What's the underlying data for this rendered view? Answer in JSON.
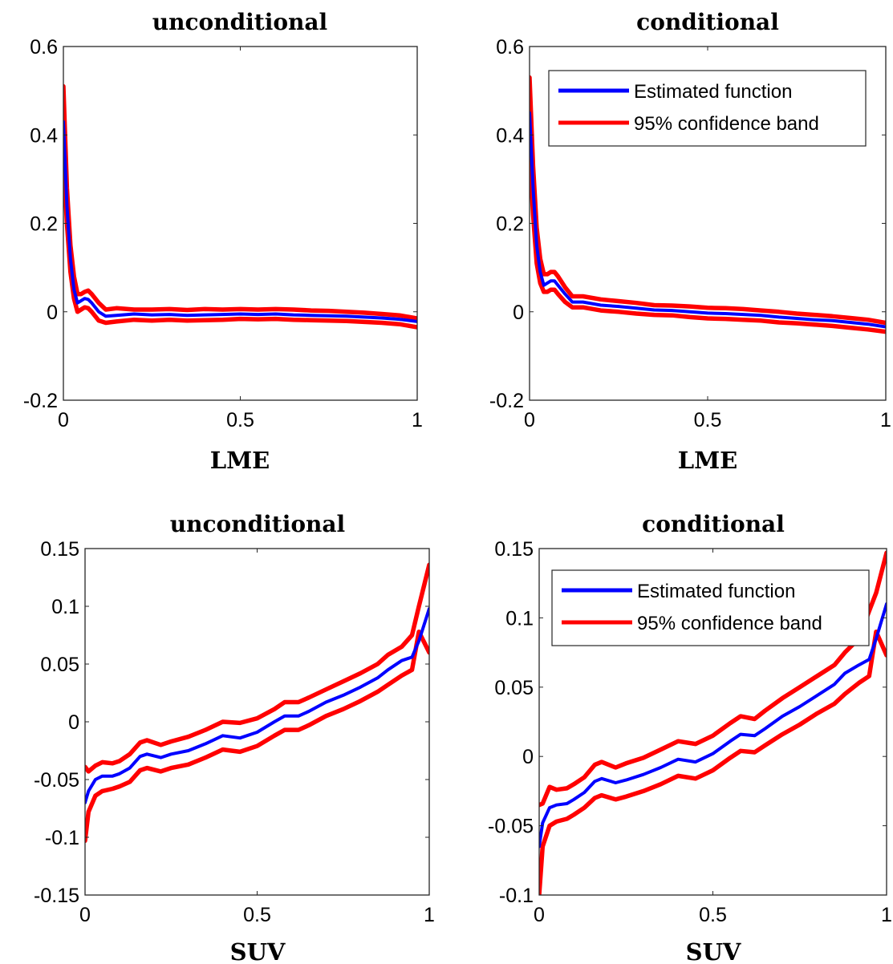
{
  "chart_data": [
    {
      "type": "line",
      "title": "unconditional",
      "xlabel": "LME",
      "ylabel": "",
      "xlim": [
        0,
        1
      ],
      "ylim": [
        -0.2,
        0.6
      ],
      "xticks": [
        0,
        0.5,
        1
      ],
      "xtick_labels": [
        "0",
        "0.5",
        "1"
      ],
      "yticks": [
        -0.2,
        0,
        0.2,
        0.4,
        0.6
      ],
      "ytick_labels": [
        "-0.2",
        "0",
        "0.2",
        "0.4",
        "0.6"
      ],
      "legend": null,
      "series": [
        {
          "color": "#0000ff",
          "x": [
            0,
            0.01,
            0.02,
            0.03,
            0.04,
            0.05,
            0.06,
            0.07,
            0.08,
            0.1,
            0.12,
            0.15,
            0.2,
            0.25,
            0.3,
            0.35,
            0.4,
            0.45,
            0.5,
            0.55,
            0.6,
            0.65,
            0.7,
            0.75,
            0.8,
            0.85,
            0.9,
            0.95,
            1.0
          ],
          "y": [
            0.43,
            0.24,
            0.12,
            0.05,
            0.02,
            0.025,
            0.03,
            0.028,
            0.02,
            0.0,
            -0.01,
            -0.008,
            -0.005,
            -0.007,
            -0.006,
            -0.008,
            -0.007,
            -0.006,
            -0.005,
            -0.006,
            -0.005,
            -0.007,
            -0.008,
            -0.009,
            -0.01,
            -0.012,
            -0.014,
            -0.017,
            -0.022
          ]
        },
        {
          "color": "#ff0000",
          "x": [
            0,
            0.01,
            0.02,
            0.03,
            0.04,
            0.05,
            0.06,
            0.07,
            0.08,
            0.1,
            0.12,
            0.15,
            0.2,
            0.25,
            0.3,
            0.35,
            0.4,
            0.45,
            0.5,
            0.55,
            0.6,
            0.65,
            0.7,
            0.75,
            0.8,
            0.85,
            0.9,
            0.95,
            1.0
          ],
          "y": [
            0.51,
            0.28,
            0.15,
            0.08,
            0.04,
            0.04,
            0.045,
            0.048,
            0.04,
            0.02,
            0.005,
            0.008,
            0.005,
            0.005,
            0.006,
            0.004,
            0.006,
            0.005,
            0.006,
            0.005,
            0.006,
            0.005,
            0.003,
            0.002,
            0.0,
            -0.002,
            -0.005,
            -0.008,
            -0.015
          ]
        },
        {
          "color": "#ff0000",
          "x": [
            0,
            0.01,
            0.02,
            0.03,
            0.04,
            0.05,
            0.06,
            0.07,
            0.08,
            0.1,
            0.12,
            0.15,
            0.2,
            0.25,
            0.3,
            0.35,
            0.4,
            0.45,
            0.5,
            0.55,
            0.6,
            0.65,
            0.7,
            0.75,
            0.8,
            0.85,
            0.9,
            0.95,
            1.0
          ],
          "y": [
            0.35,
            0.2,
            0.09,
            0.03,
            0.0,
            0.005,
            0.01,
            0.008,
            0.0,
            -0.02,
            -0.025,
            -0.022,
            -0.018,
            -0.02,
            -0.018,
            -0.02,
            -0.019,
            -0.018,
            -0.016,
            -0.017,
            -0.016,
            -0.018,
            -0.019,
            -0.02,
            -0.021,
            -0.023,
            -0.025,
            -0.028,
            -0.035
          ]
        }
      ]
    },
    {
      "type": "line",
      "title": "conditional",
      "xlabel": "LME",
      "ylabel": "",
      "xlim": [
        0,
        1
      ],
      "ylim": [
        -0.2,
        0.6
      ],
      "xticks": [
        0,
        0.5,
        1
      ],
      "xtick_labels": [
        "0",
        "0.5",
        "1"
      ],
      "yticks": [
        -0.2,
        0,
        0.2,
        0.4,
        0.6
      ],
      "ytick_labels": [
        "-0.2",
        "0",
        "0.2",
        "0.4",
        "0.6"
      ],
      "legend": {
        "position": "top-right",
        "entries": [
          {
            "label": "Estimated function",
            "color": "#0000ff"
          },
          {
            "label": "95% confidence band",
            "color": "#ff0000"
          }
        ]
      },
      "series": [
        {
          "color": "#0000ff",
          "x": [
            0,
            0.01,
            0.02,
            0.03,
            0.04,
            0.05,
            0.06,
            0.07,
            0.08,
            0.1,
            0.12,
            0.15,
            0.2,
            0.25,
            0.3,
            0.35,
            0.4,
            0.45,
            0.5,
            0.55,
            0.6,
            0.65,
            0.7,
            0.75,
            0.8,
            0.85,
            0.9,
            0.95,
            1.0
          ],
          "y": [
            0.45,
            0.28,
            0.15,
            0.09,
            0.06,
            0.065,
            0.07,
            0.07,
            0.06,
            0.04,
            0.022,
            0.022,
            0.015,
            0.012,
            0.008,
            0.004,
            0.003,
            0.0,
            -0.003,
            -0.004,
            -0.006,
            -0.008,
            -0.012,
            -0.015,
            -0.018,
            -0.02,
            -0.024,
            -0.028,
            -0.034
          ]
        },
        {
          "color": "#ff0000",
          "x": [
            0,
            0.01,
            0.02,
            0.03,
            0.04,
            0.05,
            0.06,
            0.07,
            0.08,
            0.1,
            0.12,
            0.15,
            0.2,
            0.25,
            0.3,
            0.35,
            0.4,
            0.45,
            0.5,
            0.55,
            0.6,
            0.65,
            0.7,
            0.75,
            0.8,
            0.85,
            0.9,
            0.95,
            1.0
          ],
          "y": [
            0.53,
            0.33,
            0.19,
            0.12,
            0.085,
            0.085,
            0.09,
            0.09,
            0.08,
            0.055,
            0.035,
            0.035,
            0.028,
            0.024,
            0.02,
            0.015,
            0.014,
            0.012,
            0.009,
            0.008,
            0.006,
            0.003,
            0.0,
            -0.004,
            -0.007,
            -0.01,
            -0.014,
            -0.018,
            -0.025
          ]
        },
        {
          "color": "#ff0000",
          "x": [
            0,
            0.01,
            0.02,
            0.03,
            0.04,
            0.05,
            0.06,
            0.07,
            0.08,
            0.1,
            0.12,
            0.15,
            0.2,
            0.25,
            0.3,
            0.35,
            0.4,
            0.45,
            0.5,
            0.55,
            0.6,
            0.65,
            0.7,
            0.75,
            0.8,
            0.85,
            0.9,
            0.95,
            1.0
          ],
          "y": [
            0.37,
            0.22,
            0.11,
            0.065,
            0.045,
            0.045,
            0.05,
            0.05,
            0.04,
            0.022,
            0.01,
            0.01,
            0.003,
            0.0,
            -0.004,
            -0.007,
            -0.008,
            -0.012,
            -0.015,
            -0.016,
            -0.018,
            -0.02,
            -0.024,
            -0.026,
            -0.029,
            -0.032,
            -0.036,
            -0.04,
            -0.045
          ]
        }
      ]
    },
    {
      "type": "line",
      "title": "unconditional",
      "xlabel": "SUV",
      "ylabel": "",
      "xlim": [
        0,
        1
      ],
      "ylim": [
        -0.15,
        0.15
      ],
      "xticks": [
        0,
        0.5,
        1
      ],
      "xtick_labels": [
        "0",
        "0.5",
        "1"
      ],
      "yticks": [
        -0.15,
        -0.1,
        -0.05,
        0,
        0.05,
        0.1,
        0.15
      ],
      "ytick_labels": [
        "-0.15",
        "-0.1",
        "-0.05",
        "0",
        "0.05",
        "0.1",
        "0.15"
      ],
      "legend": null,
      "series": [
        {
          "color": "#0000ff",
          "x": [
            0,
            0.01,
            0.03,
            0.05,
            0.08,
            0.1,
            0.13,
            0.16,
            0.18,
            0.22,
            0.25,
            0.3,
            0.35,
            0.4,
            0.45,
            0.5,
            0.55,
            0.58,
            0.62,
            0.65,
            0.7,
            0.75,
            0.8,
            0.85,
            0.88,
            0.92,
            0.95,
            0.97,
            1.0
          ],
          "y": [
            -0.07,
            -0.06,
            -0.05,
            -0.047,
            -0.047,
            -0.045,
            -0.04,
            -0.03,
            -0.028,
            -0.031,
            -0.028,
            -0.025,
            -0.019,
            -0.012,
            -0.014,
            -0.009,
            0.0,
            0.005,
            0.005,
            0.009,
            0.017,
            0.023,
            0.03,
            0.038,
            0.045,
            0.053,
            0.056,
            0.07,
            0.098
          ]
        },
        {
          "color": "#ff0000",
          "x": [
            0,
            0.01,
            0.03,
            0.05,
            0.08,
            0.1,
            0.13,
            0.16,
            0.18,
            0.22,
            0.25,
            0.3,
            0.35,
            0.4,
            0.45,
            0.5,
            0.55,
            0.58,
            0.62,
            0.65,
            0.7,
            0.75,
            0.8,
            0.85,
            0.88,
            0.92,
            0.95,
            0.97,
            1.0
          ],
          "y": [
            -0.039,
            -0.043,
            -0.038,
            -0.035,
            -0.036,
            -0.034,
            -0.028,
            -0.018,
            -0.016,
            -0.02,
            -0.017,
            -0.013,
            -0.007,
            0.0,
            -0.001,
            0.003,
            0.011,
            0.017,
            0.017,
            0.021,
            0.028,
            0.035,
            0.042,
            0.05,
            0.058,
            0.065,
            0.075,
            0.1,
            0.136
          ]
        },
        {
          "color": "#ff0000",
          "x": [
            0,
            0.01,
            0.03,
            0.05,
            0.08,
            0.1,
            0.13,
            0.16,
            0.18,
            0.22,
            0.25,
            0.3,
            0.35,
            0.4,
            0.45,
            0.5,
            0.55,
            0.58,
            0.62,
            0.65,
            0.7,
            0.75,
            0.8,
            0.85,
            0.88,
            0.92,
            0.95,
            0.97,
            1.0
          ],
          "y": [
            -0.103,
            -0.078,
            -0.064,
            -0.06,
            -0.058,
            -0.056,
            -0.052,
            -0.042,
            -0.04,
            -0.043,
            -0.04,
            -0.037,
            -0.031,
            -0.024,
            -0.026,
            -0.021,
            -0.012,
            -0.007,
            -0.007,
            -0.003,
            0.005,
            0.011,
            0.018,
            0.026,
            0.032,
            0.04,
            0.045,
            0.078,
            0.06
          ]
        }
      ]
    },
    {
      "type": "line",
      "title": "conditional",
      "xlabel": "SUV",
      "ylabel": "",
      "xlim": [
        0,
        1
      ],
      "ylim": [
        -0.1,
        0.15
      ],
      "xticks": [
        0,
        0.5,
        1
      ],
      "xtick_labels": [
        "0",
        "0.5",
        "1"
      ],
      "yticks": [
        -0.1,
        -0.05,
        0,
        0.05,
        0.1,
        0.15
      ],
      "ytick_labels": [
        "-0.1",
        "-0.05",
        "0",
        "0.05",
        "0.1",
        "0.15"
      ],
      "legend": {
        "position": "top-left",
        "entries": [
          {
            "label": "Estimated function",
            "color": "#0000ff"
          },
          {
            "label": "95% confidence band",
            "color": "#ff0000"
          }
        ]
      },
      "series": [
        {
          "color": "#0000ff",
          "x": [
            0,
            0.01,
            0.03,
            0.05,
            0.08,
            0.1,
            0.13,
            0.16,
            0.18,
            0.22,
            0.25,
            0.3,
            0.35,
            0.4,
            0.45,
            0.5,
            0.55,
            0.58,
            0.62,
            0.65,
            0.7,
            0.75,
            0.8,
            0.85,
            0.88,
            0.92,
            0.95,
            0.97,
            1.0
          ],
          "y": [
            -0.065,
            -0.048,
            -0.037,
            -0.035,
            -0.034,
            -0.031,
            -0.026,
            -0.018,
            -0.016,
            -0.019,
            -0.017,
            -0.013,
            -0.008,
            -0.002,
            -0.004,
            0.002,
            0.011,
            0.016,
            0.015,
            0.02,
            0.029,
            0.036,
            0.044,
            0.052,
            0.06,
            0.066,
            0.07,
            0.085,
            0.11
          ]
        },
        {
          "color": "#ff0000",
          "x": [
            0,
            0.01,
            0.03,
            0.05,
            0.08,
            0.1,
            0.13,
            0.16,
            0.18,
            0.22,
            0.25,
            0.3,
            0.35,
            0.4,
            0.45,
            0.5,
            0.55,
            0.58,
            0.62,
            0.65,
            0.7,
            0.75,
            0.8,
            0.85,
            0.88,
            0.92,
            0.95,
            0.97,
            1.0
          ],
          "y": [
            -0.035,
            -0.034,
            -0.022,
            -0.024,
            -0.023,
            -0.02,
            -0.015,
            -0.006,
            -0.004,
            -0.008,
            -0.005,
            -0.001,
            0.005,
            0.011,
            0.009,
            0.015,
            0.024,
            0.029,
            0.027,
            0.033,
            0.042,
            0.05,
            0.058,
            0.066,
            0.075,
            0.085,
            0.105,
            0.118,
            0.147
          ]
        },
        {
          "color": "#ff0000",
          "x": [
            0,
            0.01,
            0.03,
            0.05,
            0.08,
            0.1,
            0.13,
            0.16,
            0.18,
            0.22,
            0.25,
            0.3,
            0.35,
            0.4,
            0.45,
            0.5,
            0.55,
            0.58,
            0.62,
            0.65,
            0.7,
            0.75,
            0.8,
            0.85,
            0.88,
            0.92,
            0.95,
            0.97,
            1.0
          ],
          "y": [
            -0.1,
            -0.065,
            -0.05,
            -0.047,
            -0.045,
            -0.042,
            -0.037,
            -0.03,
            -0.028,
            -0.031,
            -0.029,
            -0.025,
            -0.02,
            -0.014,
            -0.016,
            -0.01,
            -0.001,
            0.004,
            0.003,
            0.008,
            0.016,
            0.023,
            0.031,
            0.038,
            0.045,
            0.053,
            0.058,
            0.09,
            0.073
          ]
        }
      ]
    }
  ]
}
